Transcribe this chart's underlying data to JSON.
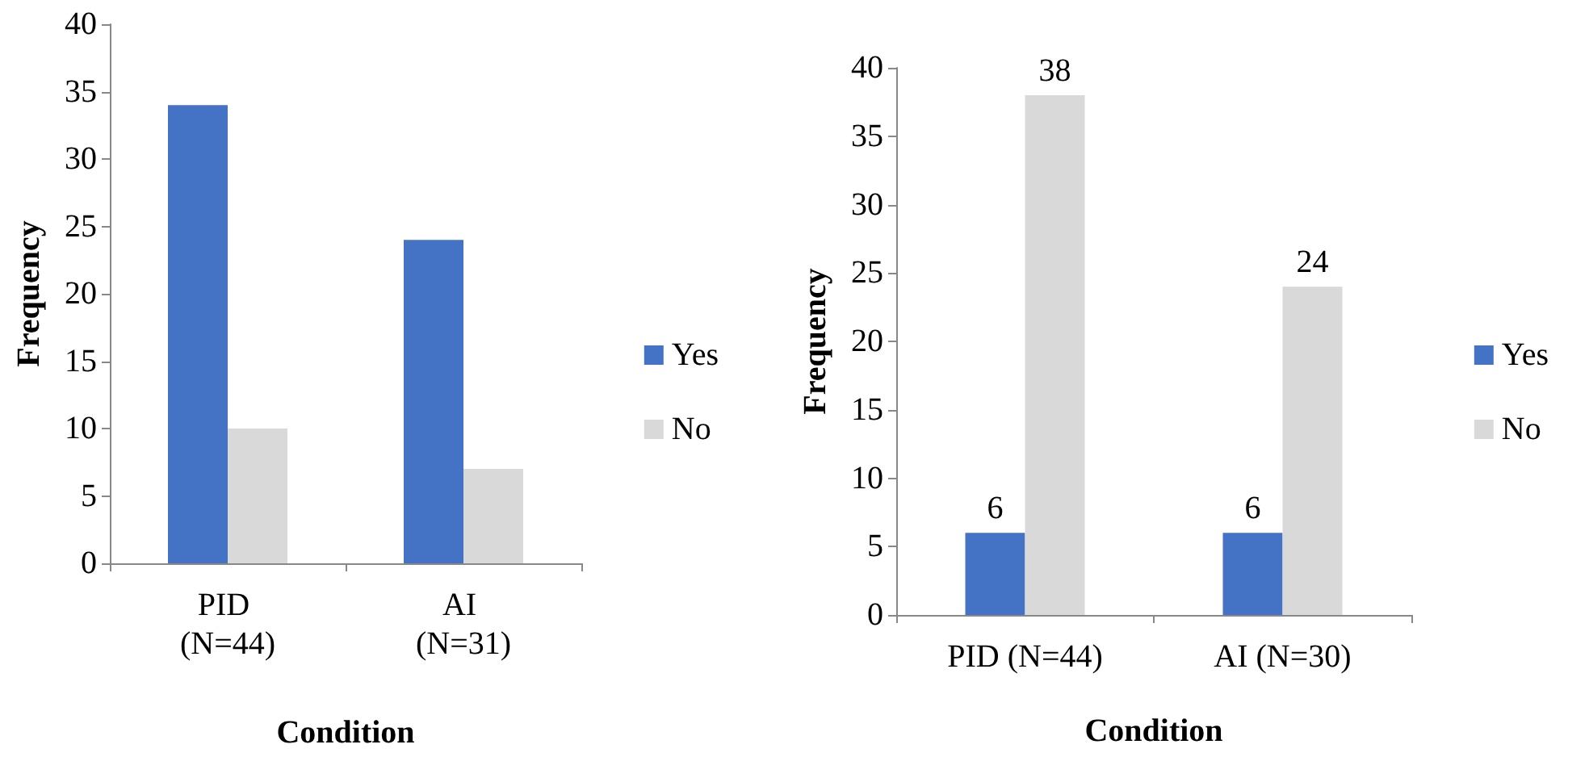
{
  "chart_data": [
    {
      "type": "bar",
      "xlabel": "Condition",
      "ylabel": "Frequency",
      "categories": [
        "PID (N=44)",
        "AI (N=31)"
      ],
      "series": [
        {
          "name": "Yes",
          "color": "#4472c4",
          "values": [
            34,
            24
          ]
        },
        {
          "name": "No",
          "color": "#d9d9d9",
          "values": [
            10,
            7
          ]
        }
      ],
      "ylim": [
        0,
        40
      ],
      "yticks": [
        0,
        5,
        10,
        15,
        20,
        25,
        30,
        35,
        40
      ],
      "grid": false,
      "legend": "right"
    },
    {
      "type": "bar",
      "xlabel": "Condition",
      "ylabel": "Frequency",
      "categories": [
        "PID (N=44)",
        "AI (N=30)"
      ],
      "series": [
        {
          "name": "Yes",
          "color": "#4472c4",
          "values": [
            6,
            6
          ]
        },
        {
          "name": "No",
          "color": "#d9d9d9",
          "values": [
            38,
            24
          ]
        }
      ],
      "ylim": [
        0,
        40
      ],
      "yticks": [
        0,
        5,
        10,
        15,
        20,
        25,
        30,
        35,
        40
      ],
      "grid": false,
      "legend": "right",
      "data_labels": true
    }
  ]
}
